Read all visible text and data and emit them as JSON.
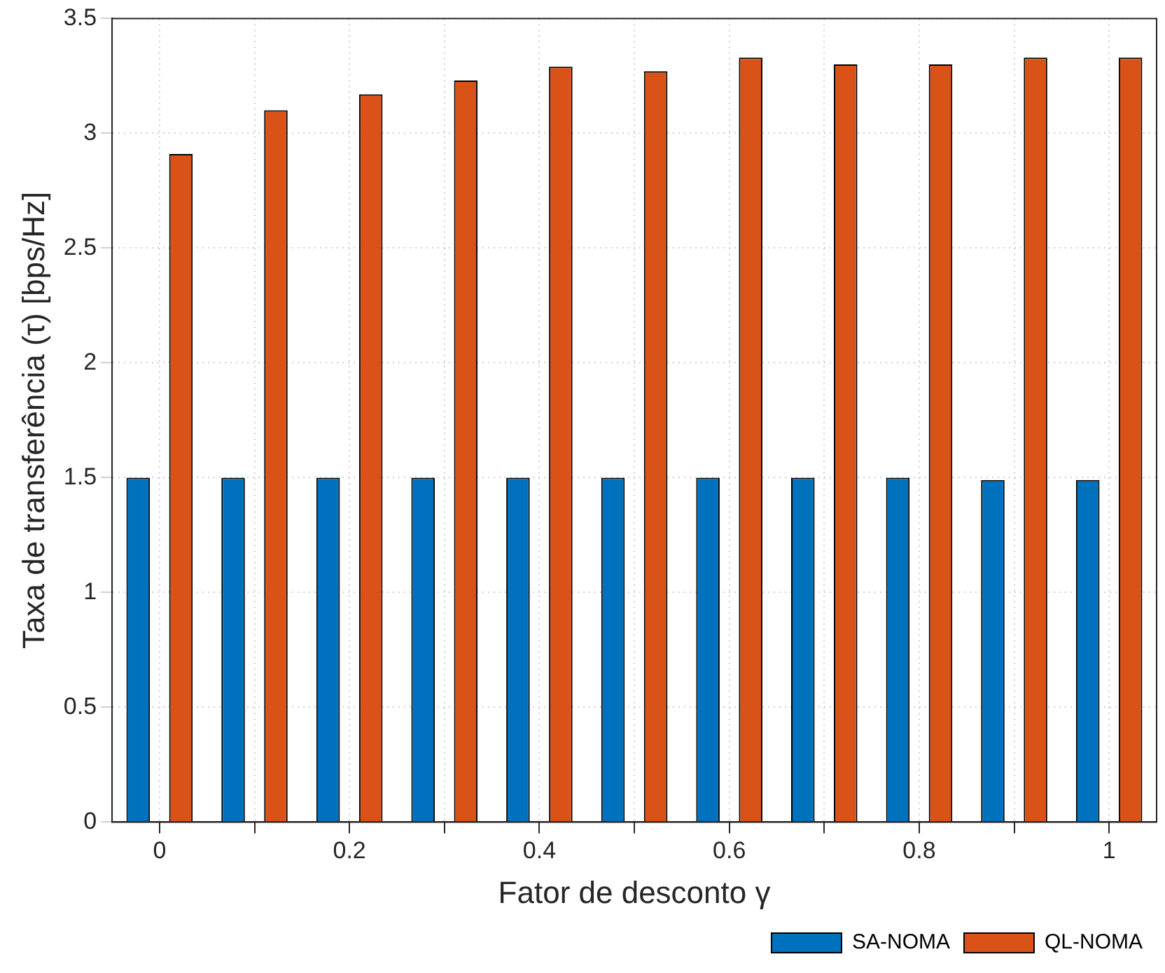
{
  "chart_data": {
    "type": "bar",
    "xlabel": "Fator de desconto γ",
    "ylabel": "Taxa de transferência (τ) [bps/Hz]",
    "categories": [
      "0",
      null,
      "0.2",
      null,
      "0.4",
      null,
      "0.6",
      null,
      "0.8",
      null,
      "1"
    ],
    "series": [
      {
        "name": "SA-NOMA",
        "color": "#0072bd",
        "values": [
          1.5,
          1.5,
          1.5,
          1.5,
          1.5,
          1.5,
          1.5,
          1.5,
          1.5,
          1.49,
          1.49
        ]
      },
      {
        "name": "QL-NOMA",
        "color": "#d95319",
        "values": [
          2.91,
          3.1,
          3.17,
          3.23,
          3.29,
          3.27,
          3.33,
          3.3,
          3.3,
          3.33,
          3.33
        ]
      }
    ],
    "ylim": [
      0,
      3.5
    ],
    "yticks": [
      0,
      0.5,
      1,
      1.5,
      2,
      2.5,
      3,
      3.5
    ],
    "grid": true,
    "legend": "bottom right"
  }
}
